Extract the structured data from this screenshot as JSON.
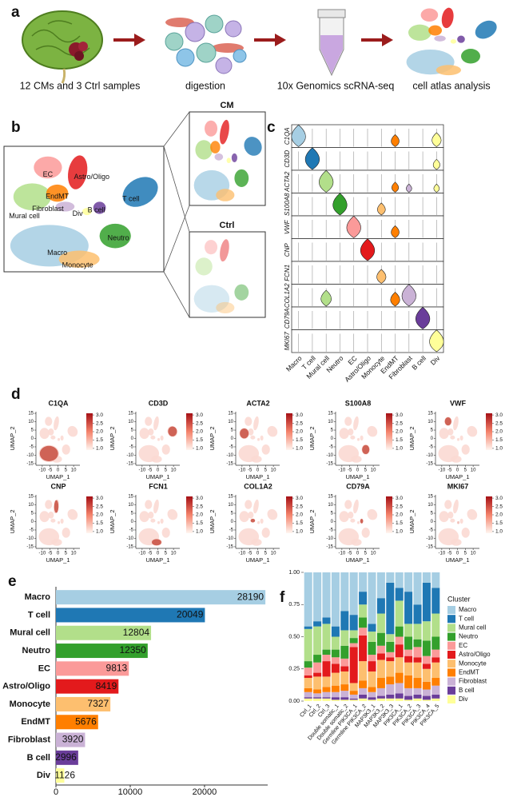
{
  "panel_labels": [
    "a",
    "b",
    "c",
    "d",
    "e",
    "f"
  ],
  "workflow": {
    "steps": [
      "12 CMs and 3 Ctrl samples",
      "digestion",
      "10x Genomics scRNA-seq",
      "cell atlas analysis"
    ]
  },
  "umap": {
    "subsets": [
      "CM",
      "Ctrl"
    ]
  },
  "violin": {
    "genes": [
      "C1QA",
      "CD3D",
      "ACTA2",
      "S100A8",
      "VWF",
      "CNP",
      "FCN1",
      "COL1A2",
      "CD79A",
      "MKI67"
    ]
  },
  "feature_plots": {
    "genes": [
      "C1QA",
      "CD3D",
      "ACTA2",
      "S100A8",
      "VWF",
      "CNP",
      "FCN1",
      "COL1A2",
      "CD79A",
      "MKI67"
    ],
    "x_label": "UMAP_1",
    "y_label": "UMAP_2",
    "xlim": [
      -14,
      14
    ],
    "ylim": [
      -16,
      16
    ],
    "xticks": [
      -10,
      -5,
      0,
      5,
      10
    ],
    "yticks": [
      -15,
      -10,
      -5,
      0,
      5,
      10,
      15
    ],
    "colorbar_lim": [
      0.9,
      3.1
    ],
    "colorbar_ticks": [
      {
        "value": 1,
        "label": "1.0"
      },
      {
        "value": 1.5,
        "label": "1.5"
      },
      {
        "value": 2,
        "label": "2.0"
      },
      {
        "value": 2.5,
        "label": "2.5"
      },
      {
        "value": 3,
        "label": "3.0"
      }
    ]
  },
  "chart_data": [
    {
      "type": "hbar",
      "categories": [
        "Macro",
        "T cell",
        "Mural cell",
        "Neutro",
        "EC",
        "Astro/Oligo",
        "Monocyte",
        "EndMT",
        "Fibroblast",
        "B cell",
        "Div"
      ],
      "values": [
        28190,
        20049,
        12804,
        12350,
        9813,
        8419,
        7327,
        5676,
        3920,
        2996,
        1126
      ],
      "colors": [
        "#a6cee3",
        "#1f78b4",
        "#b2df8a",
        "#33a02c",
        "#fb9a99",
        "#e31a1c",
        "#fdbf6f",
        "#ff7f00",
        "#cab2d6",
        "#6a3d9a",
        "#ffff99"
      ],
      "xlim": [
        0,
        28500
      ],
      "xticks": [
        0,
        10000,
        20000
      ]
    },
    {
      "type": "stacked_bar",
      "legend_title": "Cluster",
      "legend": "right",
      "categories": [
        "Ctrl_1",
        "Ctrl_2",
        "Ctrl_3",
        "Double somatic_1",
        "Double somatic_2",
        "Germline PIK3CA_1",
        "Germline PIK3CA_2",
        "MAP3K3_1",
        "MAP3K3_2",
        "MAP3K3_3",
        "PIK3CA_1",
        "PIK3CA_2",
        "PIK3CA_3",
        "PIK3CA_4",
        "PIK3CA_5"
      ],
      "ylim": [
        0,
        1
      ],
      "yticks": [
        {
          "value": 0,
          "label": "0.00"
        },
        {
          "value": 0.25,
          "label": "0.25"
        },
        {
          "value": 0.5,
          "label": "0.50"
        },
        {
          "value": 0.75,
          "label": "0.75"
        },
        {
          "value": 1,
          "label": "1.00"
        }
      ],
      "series": [
        {
          "name": "Macro",
          "color": "#a6cee3",
          "values": [
            0.42,
            0.38,
            0.35,
            0.42,
            0.3,
            0.33,
            0.15,
            0.4,
            0.2,
            0.08,
            0.12,
            0.15,
            0.25,
            0.08,
            0.12
          ]
        },
        {
          "name": "T cell",
          "color": "#1f78b4",
          "values": [
            0.02,
            0.04,
            0.05,
            0.08,
            0.15,
            0.12,
            0.1,
            0.06,
            0.12,
            0.4,
            0.1,
            0.25,
            0.15,
            0.3,
            0.2
          ]
        },
        {
          "name": "Mural cell",
          "color": "#b2df8a",
          "values": [
            0.25,
            0.22,
            0.2,
            0.1,
            0.12,
            0.06,
            0.1,
            0.08,
            0.15,
            0.06,
            0.2,
            0.1,
            0.12,
            0.15,
            0.18
          ]
        },
        {
          "name": "Neutro",
          "color": "#33a02c",
          "values": [
            0.05,
            0.06,
            0.04,
            0.06,
            0.1,
            0.04,
            0.08,
            0.1,
            0.1,
            0.08,
            0.08,
            0.1,
            0.06,
            0.12,
            0.1
          ]
        },
        {
          "name": "EC",
          "color": "#fb9a99",
          "values": [
            0.06,
            0.08,
            0.05,
            0.05,
            0.06,
            0.03,
            0.06,
            0.05,
            0.06,
            0.04,
            0.06,
            0.05,
            0.08,
            0.06,
            0.06
          ]
        },
        {
          "name": "Astro/Oligo",
          "color": "#e31a1c",
          "values": [
            0.02,
            0.03,
            0.12,
            0.07,
            0.04,
            0.28,
            0.2,
            0.08,
            0.05,
            0.03,
            0.1,
            0.05,
            0.04,
            0.04,
            0.04
          ]
        },
        {
          "name": "Monocyte",
          "color": "#fdbf6f",
          "values": [
            0.08,
            0.1,
            0.08,
            0.1,
            0.1,
            0.06,
            0.15,
            0.12,
            0.14,
            0.12,
            0.12,
            0.1,
            0.12,
            0.1,
            0.12
          ]
        },
        {
          "name": "EndMT",
          "color": "#ff7f00",
          "values": [
            0.03,
            0.03,
            0.04,
            0.05,
            0.05,
            0.03,
            0.06,
            0.04,
            0.08,
            0.06,
            0.08,
            0.1,
            0.08,
            0.06,
            0.06
          ]
        },
        {
          "name": "Fibroblast",
          "color": "#cab2d6",
          "values": [
            0.04,
            0.03,
            0.04,
            0.04,
            0.05,
            0.03,
            0.05,
            0.04,
            0.06,
            0.08,
            0.08,
            0.06,
            0.05,
            0.05,
            0.07
          ]
        },
        {
          "name": "B cell",
          "color": "#6a3d9a",
          "values": [
            0.01,
            0.01,
            0.01,
            0.02,
            0.02,
            0.01,
            0.03,
            0.02,
            0.02,
            0.03,
            0.04,
            0.03,
            0.03,
            0.03,
            0.03
          ]
        },
        {
          "name": "Div",
          "color": "#ffff99",
          "values": [
            0.02,
            0.02,
            0.02,
            0.01,
            0.01,
            0.01,
            0.02,
            0.01,
            0.02,
            0.02,
            0.02,
            0.01,
            0.02,
            0.01,
            0.02
          ]
        }
      ]
    }
  ]
}
